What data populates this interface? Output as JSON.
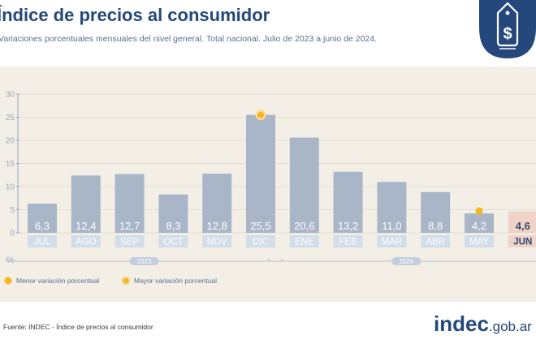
{
  "header": {
    "title": "Índice de precios al consumidor",
    "subtitle": "Variaciones porcentuales mensuales del nivel general. Total nacional. Julio de 2023 a junio de 2024."
  },
  "footer": {
    "source": "Fuente: INDEC - Índice de precios al consumidor",
    "brand_main": "indec",
    "brand_suffix": ".gob.ar"
  },
  "colors": {
    "bar": "#a9b6c8",
    "bar_highlight": "#f0d2c6",
    "label_bg": "#d2ddea",
    "label_bg_highlight": "#f0d2c6",
    "marker": "#f5b71e",
    "title": "#24487b",
    "panel": "#f3efe6",
    "axis_text": "#9aa8bd"
  },
  "chart_data": {
    "type": "bar",
    "categories": [
      "JUL",
      "AGO",
      "SEP",
      "OCT",
      "NOV",
      "DIC",
      "ENE",
      "FEB",
      "MAR",
      "ABR",
      "MAY",
      "JUN"
    ],
    "values": [
      6.3,
      12.4,
      12.7,
      8.3,
      12.8,
      25.5,
      20.6,
      13.2,
      11.0,
      8.8,
      4.2,
      4.6
    ],
    "value_labels": [
      "6,3",
      "12,4",
      "12,7",
      "8,3",
      "12,8",
      "25,5",
      "20,6",
      "13,2",
      "11,0",
      "8,8",
      "4,2",
      "4,6"
    ],
    "highlight_index": 11,
    "ylim": [
      0,
      30
    ],
    "yticks": [
      0,
      5,
      10,
      15,
      20,
      25,
      30
    ],
    "ylabel": "%",
    "year_groups": [
      {
        "label": "2023",
        "start": 0,
        "end": 5
      },
      {
        "label": "2024",
        "start": 6,
        "end": 11
      }
    ],
    "markers": [
      {
        "index": 10,
        "kind": "min"
      },
      {
        "index": 5,
        "kind": "max"
      }
    ],
    "legend": [
      {
        "kind": "min",
        "label": "Menor variación porcentual"
      },
      {
        "kind": "max",
        "label": "Mayor variación porcentual"
      }
    ],
    "grid": true,
    "legend_position": "bottom-left"
  }
}
